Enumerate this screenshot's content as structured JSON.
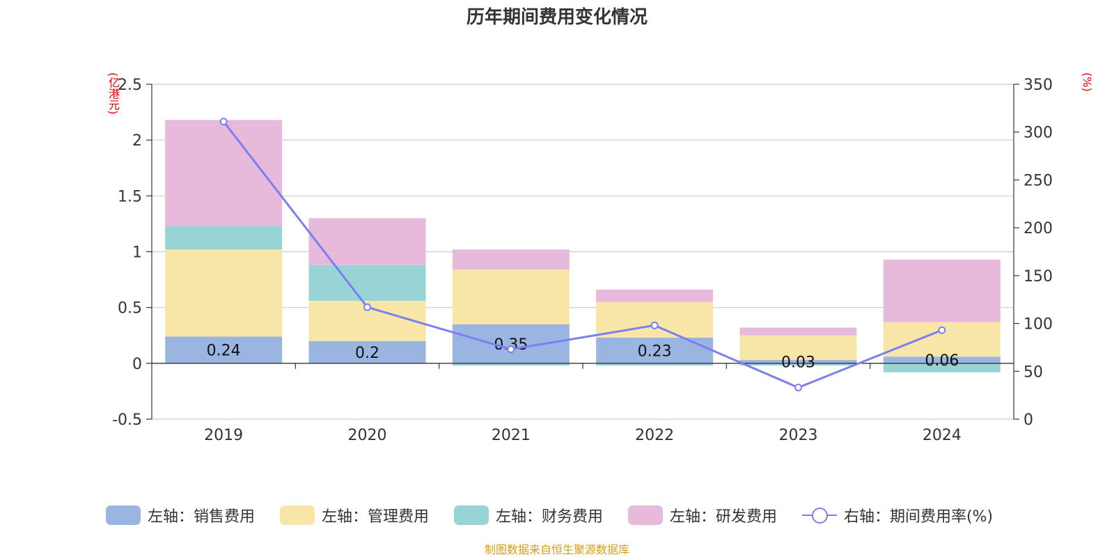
{
  "title": "历年期间费用变化情况",
  "left_unit": "(亿港元)",
  "right_unit": "(%)",
  "source": "制图数据来自恒生聚源数据库",
  "colors": {
    "sales": "#9ab5e2",
    "admin": "#f8e6a8",
    "finance": "#98d4d6",
    "rnd": "#e7b9db",
    "rate": "#7b7ff0"
  },
  "chart_data": {
    "type": "bar",
    "stacked": true,
    "categories": [
      "2019",
      "2020",
      "2021",
      "2022",
      "2023",
      "2024"
    ],
    "series": [
      {
        "name": "左轴：销售费用",
        "axis": "left",
        "values": [
          0.24,
          0.2,
          0.35,
          0.23,
          0.03,
          0.06
        ]
      },
      {
        "name": "左轴：管理费用",
        "axis": "left",
        "values": [
          0.78,
          0.36,
          0.49,
          0.32,
          0.22,
          0.31
        ]
      },
      {
        "name": "左轴：财务费用",
        "axis": "left",
        "values": [
          0.21,
          0.32,
          -0.02,
          -0.02,
          -0.02,
          -0.08
        ]
      },
      {
        "name": "左轴：研发费用",
        "axis": "left",
        "values": [
          0.95,
          0.42,
          0.18,
          0.11,
          0.07,
          0.56
        ]
      },
      {
        "name": "右轴：期间费用率(%)",
        "axis": "right",
        "type": "line",
        "values": [
          311,
          117,
          73,
          98,
          33,
          93
        ]
      }
    ],
    "data_labels": [
      "0.24",
      "0.2",
      "0.35",
      "0.23",
      "0.03",
      "0.06"
    ],
    "y_left": {
      "ticks": [
        "-0.5",
        "0",
        "0.5",
        "1",
        "1.5",
        "2",
        "2.5"
      ],
      "min": -0.5,
      "max": 2.5
    },
    "y_right": {
      "ticks": [
        "0",
        "50",
        "100",
        "150",
        "200",
        "250",
        "300",
        "350"
      ],
      "min": 0,
      "max": 350
    },
    "grid": true,
    "legend_position": "bottom"
  }
}
